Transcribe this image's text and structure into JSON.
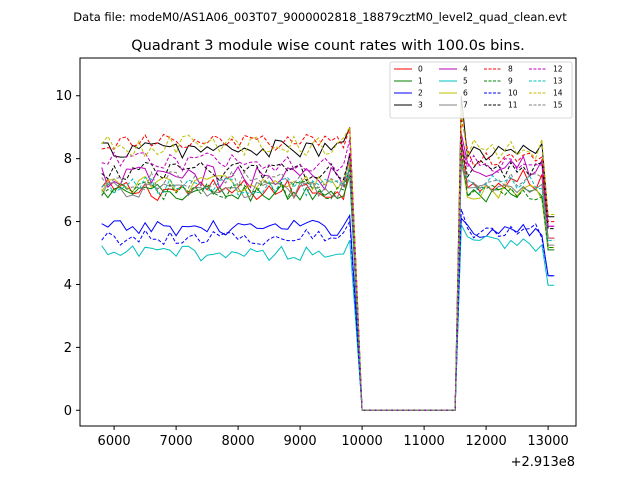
{
  "suptitle": "Data file: modeM0/AS1A06_003T07_9000002818_18879cztM0_level2_quad_clean.evt",
  "chart_data": {
    "type": "line",
    "title": "Quadrant 3 module wise count rates with 100.0s bins.",
    "xlabel": "",
    "ylabel": "",
    "offset_text": "+2.913e8",
    "xlim": [
      5450,
      13450
    ],
    "ylim": [
      -0.5,
      11.2
    ],
    "xticks": [
      6000,
      7000,
      8000,
      9000,
      10000,
      11000,
      12000,
      13000
    ],
    "yticks": [
      0,
      2,
      4,
      6,
      8,
      10
    ],
    "legend_position": "top-right",
    "legend_columns": 4,
    "bin_seconds": 100,
    "x_start": 5800,
    "x_end": 13100,
    "gap": {
      "start": 9800,
      "drop": 10000,
      "rise": 11550,
      "end": 11650
    },
    "series": [
      {
        "name": "0",
        "color": "#ff0000",
        "dashed": false,
        "base1": 7.0,
        "base2": 7.3,
        "amp": 0.35,
        "peak": 8.6
      },
      {
        "name": "1",
        "color": "#008000",
        "dashed": false,
        "base1": 6.9,
        "base2": 6.8,
        "amp": 0.3,
        "peak": 8.1
      },
      {
        "name": "2",
        "color": "#0000ff",
        "dashed": false,
        "base1": 5.8,
        "base2": 5.7,
        "amp": 0.25,
        "peak": 6.1
      },
      {
        "name": "3",
        "color": "#000000",
        "dashed": false,
        "base1": 8.3,
        "base2": 8.2,
        "amp": 0.3,
        "peak": 10.0
      },
      {
        "name": "4",
        "color": "#bf00bf",
        "dashed": false,
        "base1": 7.4,
        "base2": 7.8,
        "amp": 0.4,
        "peak": 8.8
      },
      {
        "name": "5",
        "color": "#00bfbf",
        "dashed": false,
        "base1": 5.0,
        "base2": 5.3,
        "amp": 0.25,
        "peak": 5.9
      },
      {
        "name": "6",
        "color": "#bfbf00",
        "dashed": false,
        "base1": 7.2,
        "base2": 6.9,
        "amp": 0.3,
        "peak": 8.0
      },
      {
        "name": "7",
        "color": "#808080",
        "dashed": false,
        "base1": 7.0,
        "base2": 7.0,
        "amp": 0.25,
        "peak": 7.8
      },
      {
        "name": "8",
        "color": "#ff0000",
        "dashed": true,
        "base1": 8.5,
        "base2": 8.0,
        "amp": 0.3,
        "peak": 9.3
      },
      {
        "name": "9",
        "color": "#008000",
        "dashed": true,
        "base1": 7.0,
        "base2": 6.9,
        "amp": 0.3,
        "peak": 8.3
      },
      {
        "name": "10",
        "color": "#0000ff",
        "dashed": true,
        "base1": 5.5,
        "base2": 5.7,
        "amp": 0.25,
        "peak": 6.4
      },
      {
        "name": "11",
        "color": "#000000",
        "dashed": true,
        "base1": 7.6,
        "base2": 7.7,
        "amp": 0.3,
        "peak": 8.6
      },
      {
        "name": "12",
        "color": "#bf00bf",
        "dashed": true,
        "base1": 7.9,
        "base2": 7.8,
        "amp": 0.3,
        "peak": 8.5
      },
      {
        "name": "13",
        "color": "#00bfbf",
        "dashed": true,
        "base1": 7.1,
        "base2": 7.2,
        "amp": 0.3,
        "peak": 7.9
      },
      {
        "name": "14",
        "color": "#bfbf00",
        "dashed": true,
        "base1": 8.4,
        "base2": 8.3,
        "amp": 0.35,
        "peak": 9.6
      },
      {
        "name": "15",
        "color": "#808080",
        "dashed": true,
        "base1": 7.3,
        "base2": 7.3,
        "amp": 0.3,
        "peak": 8.0
      }
    ]
  }
}
